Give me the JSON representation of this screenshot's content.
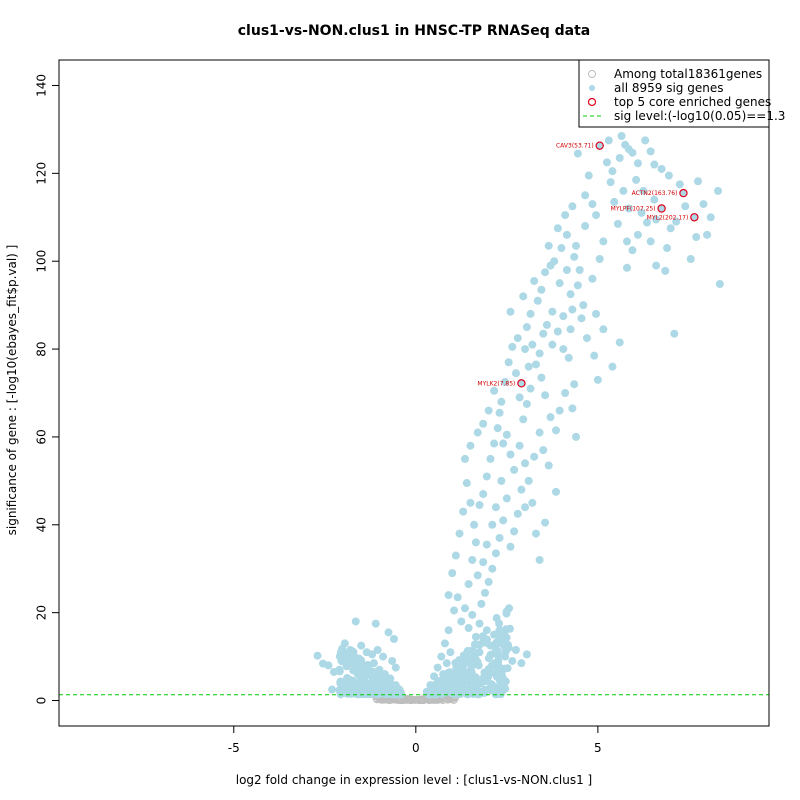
{
  "chart_data": {
    "type": "scatter",
    "title": "clus1-vs-NON.clus1 in HNSC-TP RNASeq data",
    "xlabel": "log2 fold change in expression level : [clus1-vs-NON.clus1 ]",
    "ylabel": "significance of gene : [-log10(ebayes_fit$p.val) ]",
    "xlim": [
      -9.8,
      9.7
    ],
    "ylim": [
      -5.8,
      145.8
    ],
    "xticks": [
      -5,
      0,
      5
    ],
    "yticks": [
      0,
      20,
      40,
      60,
      80,
      100,
      120,
      140
    ],
    "sig_level": 1.3,
    "colors": {
      "nonsig": "#bebebe",
      "sig": "#add8e6",
      "core": "#e0001b",
      "sig_line": "#00cc00",
      "gene_label": "#d10000"
    },
    "legend": {
      "position": "top-right",
      "entries": [
        {
          "label": "Among total18361genes",
          "marker": "open-circle-gray"
        },
        {
          "label": "all 8959 sig genes",
          "marker": "filled-circle-lightblue"
        },
        {
          "label": "top 5 core enriched genes",
          "marker": "open-circle-red"
        },
        {
          "label": "sig level:(-log10(0.05)==1.3",
          "marker": "dashed-green-line"
        }
      ]
    },
    "core_genes": [
      {
        "label": "CAV3(53.71)",
        "x": 5.05,
        "y": 126.3
      },
      {
        "label": "ACTN2(163.76)",
        "x": 7.35,
        "y": 115.5
      },
      {
        "label": "MYLPF(107.25)",
        "x": 6.75,
        "y": 112.0
      },
      {
        "label": "MYL2(202.17)",
        "x": 7.65,
        "y": 110.0
      },
      {
        "label": "MYLK2(7.85)",
        "x": 2.9,
        "y": 72.2
      }
    ],
    "sig_points": [
      [
        8.35,
        94.8
      ],
      [
        7.1,
        83.5
      ],
      [
        5.6,
        81.5
      ],
      [
        7.55,
        100.5
      ],
      [
        7.7,
        105.5
      ],
      [
        8.0,
        106.0
      ],
      [
        8.1,
        110.0
      ],
      [
        8.3,
        116.0
      ],
      [
        7.9,
        113.0
      ],
      [
        7.75,
        118.2
      ],
      [
        6.85,
        97.8
      ],
      [
        7.0,
        107.5
      ],
      [
        6.9,
        103.0
      ],
      [
        6.6,
        99.0
      ],
      [
        6.45,
        104.5
      ],
      [
        6.35,
        108.8
      ],
      [
        6.2,
        111.0
      ],
      [
        6.1,
        106.0
      ],
      [
        5.95,
        102.5
      ],
      [
        5.8,
        98.5
      ],
      [
        6.75,
        121.0
      ],
      [
        7.25,
        117.5
      ],
      [
        6.95,
        119.5
      ],
      [
        6.55,
        122.0
      ],
      [
        6.45,
        125.0
      ],
      [
        6.3,
        127.5
      ],
      [
        6.1,
        122.3
      ],
      [
        5.95,
        124.7
      ],
      [
        5.75,
        126.5
      ],
      [
        5.6,
        123.5
      ],
      [
        5.4,
        120.5
      ],
      [
        5.35,
        118.0
      ],
      [
        5.25,
        122.5
      ],
      [
        5.45,
        113.5
      ],
      [
        5.7,
        116.0
      ],
      [
        5.85,
        112.0
      ],
      [
        5.55,
        108.5
      ],
      [
        5.15,
        104.5
      ],
      [
        5.05,
        100.5
      ],
      [
        4.85,
        96.0
      ],
      [
        4.95,
        110.5
      ],
      [
        4.65,
        115.0
      ],
      [
        4.75,
        119.5
      ],
      [
        4.45,
        124.5
      ],
      [
        4.3,
        112.5
      ],
      [
        4.15,
        106.0
      ],
      [
        4.35,
        101.0
      ],
      [
        4.0,
        103.0
      ],
      [
        3.8,
        100.0
      ],
      [
        3.7,
        99.0
      ],
      [
        4.25,
        92.5
      ],
      [
        4.45,
        94.5
      ],
      [
        4.6,
        90.0
      ],
      [
        4.5,
        98.0
      ],
      [
        4.95,
        88.0
      ],
      [
        5.15,
        84.5
      ],
      [
        5.4,
        76.0
      ],
      [
        5.0,
        73.0
      ],
      [
        4.9,
        78.5
      ],
      [
        4.7,
        82.5
      ],
      [
        3.9,
        107.5
      ],
      [
        3.65,
        103.5
      ],
      [
        3.55,
        97.5
      ],
      [
        3.45,
        93.5
      ],
      [
        3.35,
        91.0
      ],
      [
        3.25,
        95.5
      ],
      [
        3.15,
        88.0
      ],
      [
        3.05,
        85.0
      ],
      [
        3.2,
        81.0
      ],
      [
        3.4,
        79.0
      ],
      [
        3.6,
        85.5
      ],
      [
        3.75,
        88.5
      ],
      [
        3.9,
        84.0
      ],
      [
        4.05,
        80.0
      ],
      [
        4.2,
        78.0
      ],
      [
        4.35,
        72.0
      ],
      [
        4.1,
        70.0
      ],
      [
        3.95,
        66.0
      ],
      [
        4.3,
        66.5
      ],
      [
        4.4,
        60.0
      ],
      [
        3.85,
        61.5
      ],
      [
        3.7,
        64.5
      ],
      [
        3.55,
        69.5
      ],
      [
        3.45,
        73.5
      ],
      [
        3.3,
        76.5
      ],
      [
        3.15,
        71.0
      ],
      [
        3.05,
        67.5
      ],
      [
        2.95,
        64.0
      ],
      [
        2.85,
        69.0
      ],
      [
        2.75,
        74.5
      ],
      [
        2.65,
        80.5
      ],
      [
        2.55,
        77.0
      ],
      [
        2.45,
        72.5
      ],
      [
        2.35,
        68.0
      ],
      [
        2.25,
        62.0
      ],
      [
        2.15,
        58.5
      ],
      [
        2.05,
        55.0
      ],
      [
        1.95,
        51.0
      ],
      [
        1.85,
        47.0
      ],
      [
        1.75,
        44.5
      ],
      [
        2.5,
        60.5
      ],
      [
        2.6,
        56.0
      ],
      [
        2.7,
        52.5
      ],
      [
        2.85,
        58.0
      ],
      [
        3.0,
        54.0
      ],
      [
        3.1,
        50.0
      ],
      [
        3.25,
        55.5
      ],
      [
        3.4,
        61.0
      ],
      [
        3.5,
        57.0
      ],
      [
        3.65,
        53.5
      ],
      [
        3.85,
        47.5
      ],
      [
        3.55,
        40.5
      ],
      [
        3.3,
        38.0
      ],
      [
        3.4,
        32.0
      ],
      [
        3.2,
        45.0
      ],
      [
        3.0,
        44.0
      ],
      [
        2.9,
        48.0
      ],
      [
        2.8,
        42.5
      ],
      [
        2.7,
        38.5
      ],
      [
        2.6,
        35.0
      ],
      [
        2.5,
        46.0
      ],
      [
        2.4,
        41.0
      ],
      [
        2.3,
        37.0
      ],
      [
        2.2,
        33.5
      ],
      [
        2.1,
        30.0
      ],
      [
        2.0,
        27.0
      ],
      [
        1.9,
        24.5
      ],
      [
        1.8,
        22.0
      ],
      [
        2.35,
        50.0
      ],
      [
        2.2,
        44.0
      ],
      [
        2.1,
        40.0
      ],
      [
        1.95,
        35.5
      ],
      [
        1.85,
        31.5
      ],
      [
        1.7,
        28.5
      ],
      [
        1.65,
        36.0
      ],
      [
        1.55,
        32.0
      ],
      [
        1.45,
        26.5
      ],
      [
        1.6,
        40.0
      ],
      [
        1.5,
        45.0
      ],
      [
        1.4,
        49.5
      ],
      [
        1.3,
        43.0
      ],
      [
        1.2,
        38.0
      ],
      [
        1.1,
        33.0
      ],
      [
        1.0,
        29.0
      ],
      [
        0.9,
        24.0
      ],
      [
        1.35,
        55.0
      ],
      [
        1.5,
        58.0
      ],
      [
        1.7,
        61.0
      ],
      [
        1.85,
        63.0
      ],
      [
        2.0,
        66.0
      ],
      [
        2.15,
        70.5
      ],
      [
        2.3,
        65.5
      ],
      [
        2.4,
        58.5
      ],
      [
        2.6,
        88.5
      ],
      [
        2.8,
        82.5
      ],
      [
        3.0,
        80.0
      ],
      [
        3.1,
        76.0
      ],
      [
        2.95,
        92.0
      ],
      [
        3.5,
        83.5
      ],
      [
        3.75,
        81.0
      ],
      [
        4.05,
        87.5
      ],
      [
        4.3,
        89.0
      ],
      [
        4.55,
        87.0
      ],
      [
        4.25,
        84.5
      ],
      [
        3.95,
        95.0
      ],
      [
        4.15,
        98.0
      ],
      [
        4.4,
        103.5
      ],
      [
        4.65,
        108.0
      ],
      [
        4.85,
        113.0
      ],
      [
        4.1,
        110.5
      ],
      [
        5.3,
        127.5
      ],
      [
        5.65,
        128.5
      ],
      [
        5.85,
        125.5
      ],
      [
        6.05,
        118.5
      ],
      [
        6.55,
        114.0
      ],
      [
        6.25,
        116.0
      ],
      [
        7.4,
        112.5
      ],
      [
        7.15,
        109.0
      ],
      [
        5.8,
        104.5
      ],
      [
        6.6,
        109.5
      ],
      [
        1.05,
        20.5
      ],
      [
        1.15,
        23.5
      ],
      [
        1.25,
        18.0
      ],
      [
        1.35,
        21.0
      ],
      [
        1.45,
        16.5
      ],
      [
        1.55,
        19.5
      ],
      [
        1.65,
        14.5
      ],
      [
        1.75,
        17.5
      ],
      [
        1.85,
        13.5
      ],
      [
        1.95,
        16.0
      ],
      [
        2.05,
        12.5
      ],
      [
        2.15,
        15.0
      ],
      [
        2.25,
        11.0
      ],
      [
        2.35,
        13.0
      ],
      [
        2.45,
        10.0
      ],
      [
        2.55,
        12.0
      ],
      [
        2.65,
        9.0
      ],
      [
        2.75,
        11.5
      ],
      [
        2.9,
        8.5
      ],
      [
        3.05,
        10.5
      ],
      [
        0.9,
        16.0
      ],
      [
        0.8,
        13.0
      ],
      [
        0.7,
        10.0
      ],
      [
        0.6,
        7.5
      ],
      [
        0.5,
        5.5
      ],
      [
        0.4,
        3.5
      ],
      [
        0.3,
        2.0
      ],
      [
        0.95,
        11.0
      ],
      [
        0.85,
        8.5
      ],
      [
        0.75,
        6.0
      ],
      [
        -2.7,
        10.2
      ],
      [
        -2.55,
        8.4
      ],
      [
        -2.4,
        8.0
      ],
      [
        -2.25,
        6.5
      ],
      [
        -2.1,
        7.0
      ],
      [
        -1.9,
        7.8
      ],
      [
        -1.75,
        9.5
      ],
      [
        -1.6,
        9.0
      ],
      [
        -1.45,
        8.0
      ],
      [
        -1.3,
        7.5
      ],
      [
        -1.15,
        8.5
      ],
      [
        -1.0,
        7.0
      ],
      [
        -0.85,
        6.0
      ],
      [
        -0.7,
        5.0
      ],
      [
        -0.55,
        3.5
      ],
      [
        -0.45,
        2.5
      ],
      [
        -1.65,
        18.0
      ],
      [
        -1.1,
        17.5
      ],
      [
        -0.75,
        15.5
      ],
      [
        -0.6,
        14.0
      ],
      [
        -1.95,
        13.0
      ],
      [
        -1.8,
        11.5
      ],
      [
        -1.5,
        12.5
      ],
      [
        -1.35,
        11.0
      ],
      [
        -1.2,
        10.5
      ],
      [
        -1.05,
        11.5
      ],
      [
        -0.9,
        10.0
      ],
      [
        -0.65,
        9.0
      ],
      [
        -0.55,
        7.5
      ],
      [
        -2.0,
        3.5
      ],
      [
        -1.85,
        4.5
      ],
      [
        -1.6,
        3.0
      ],
      [
        -1.4,
        4.0
      ],
      [
        -1.25,
        3.0
      ],
      [
        -1.0,
        4.0
      ],
      [
        -0.8,
        3.0
      ],
      [
        -2.3,
        2.5
      ],
      [
        -1.7,
        1.8
      ],
      [
        -0.95,
        1.8
      ],
      [
        -0.5,
        1.6
      ]
    ],
    "sig_clusters": [
      {
        "x": [
          0.35,
          2.6
        ],
        "y": [
          1.4,
          22.0
        ],
        "count": 340
      },
      {
        "x": [
          -2.1,
          -0.4
        ],
        "y": [
          1.4,
          13.0
        ],
        "count": 230
      }
    ],
    "nonsig_region": {
      "x": [
        -1.1,
        1.1
      ],
      "y": [
        0.0,
        1.3
      ],
      "count": 260
    }
  }
}
